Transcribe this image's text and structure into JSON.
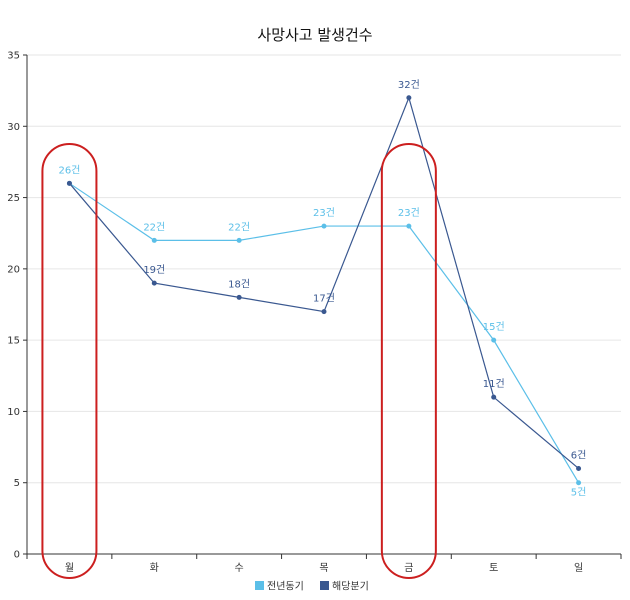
{
  "chart_data": {
    "type": "line",
    "title": "사망사고 발생건수",
    "categories": [
      "월",
      "화",
      "수",
      "목",
      "금",
      "토",
      "일"
    ],
    "ylim": [
      0,
      35
    ],
    "yticks": [
      0,
      5,
      10,
      15,
      20,
      25,
      30,
      35
    ],
    "grid": true,
    "legend_position": "bottom",
    "value_suffix": "건",
    "series": [
      {
        "name": "전년동기",
        "color": "#5bbfe8",
        "values": [
          26,
          22,
          22,
          23,
          23,
          15,
          5
        ]
      },
      {
        "name": "해당분기",
        "color": "#3a5890",
        "values": [
          26,
          19,
          18,
          17,
          32,
          11,
          6
        ]
      }
    ],
    "highlight_categories": [
      "월",
      "금"
    ],
    "highlight_color": "#cc1f1f"
  }
}
